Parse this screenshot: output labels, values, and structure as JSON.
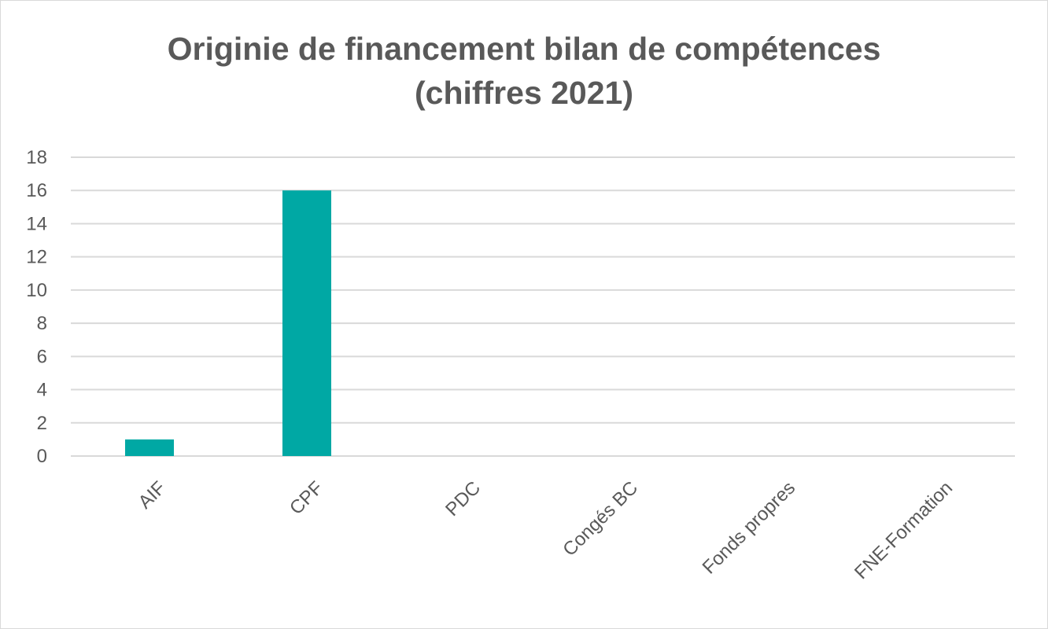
{
  "chart_data": {
    "type": "bar",
    "title_lines": [
      "Originie de financement bilan de compétences",
      "(chiffres 2021)"
    ],
    "categories": [
      "AIF",
      "CPF",
      "PDC",
      "Congés BC",
      "Fonds propres",
      "FNE-Formation"
    ],
    "values": [
      1,
      16,
      0,
      0,
      0,
      0
    ],
    "xlabel": "",
    "ylabel": "",
    "ylim": [
      0,
      18
    ],
    "yticks": [
      "0",
      "2",
      "4",
      "6",
      "8",
      "10",
      "12",
      "14",
      "16",
      "18"
    ],
    "grid": true,
    "legend": "none",
    "colors": {
      "bar": "#00A8A4",
      "grid": "#d9d9d9",
      "text": "#595959"
    }
  }
}
